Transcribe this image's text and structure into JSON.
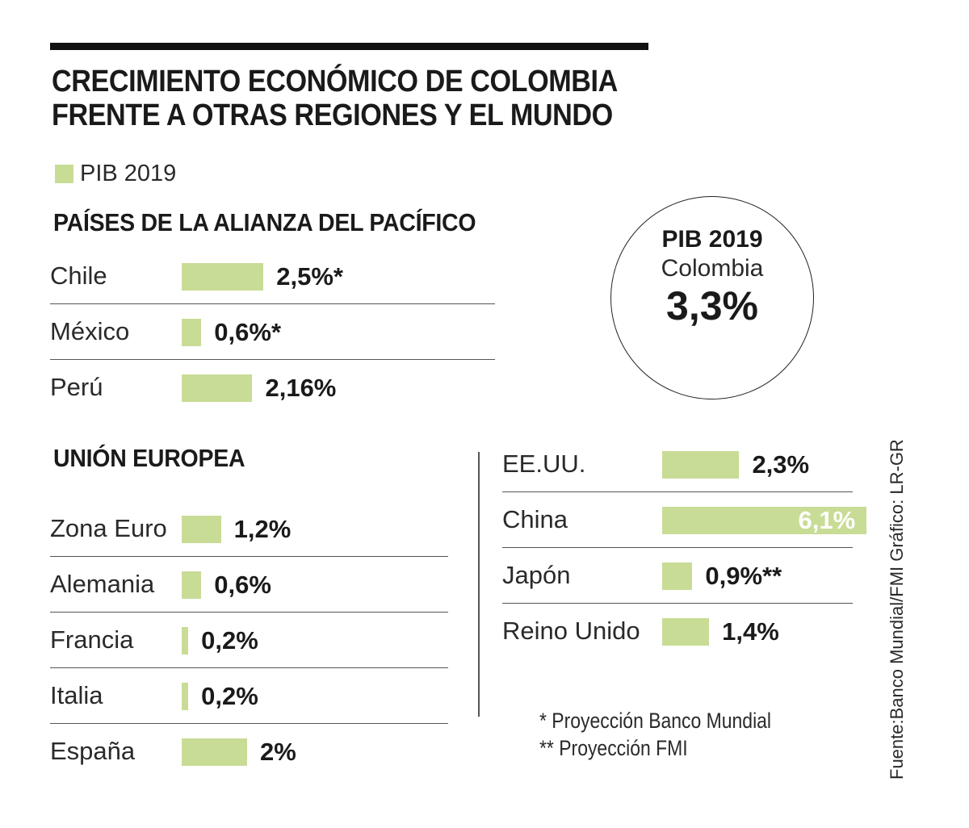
{
  "title_line1": "CRECIMIENTO ECONÓMICO DE COLOMBIA",
  "title_line2": "FRENTE A OTRAS REGIONES Y EL MUNDO",
  "legend_label": "PIB 2019",
  "colors": {
    "bar": "#c8dc96",
    "text": "#1a1a1a"
  },
  "circle": {
    "title": "PIB 2019",
    "country": "Colombia",
    "value_label": "3,3%",
    "value": 3.3
  },
  "footnotes": [
    "*   Proyección Banco Mundial",
    "** Proyección FMI"
  ],
  "side_text": "Fuente:Banco Mundial/FMI    Gráfico: LR-GR",
  "chart_data": {
    "type": "bar",
    "orientation": "horizontal",
    "title": "CRECIMIENTO ECONÓMICO DE COLOMBIA FRENTE A OTRAS REGIONES Y EL MUNDO",
    "series_name": "PIB 2019",
    "groups": [
      {
        "name": "PAÍSES DE LA ALIANZA DEL PACÍFICO",
        "items": [
          {
            "label": "Chile",
            "value": 2.5,
            "value_label": "2,5%*"
          },
          {
            "label": "México",
            "value": 0.6,
            "value_label": "0,6%*"
          },
          {
            "label": "Perú",
            "value": 2.16,
            "value_label": "2,16%"
          }
        ]
      },
      {
        "name": "UNIÓN EUROPEA",
        "items": [
          {
            "label": "Zona Euro",
            "value": 1.2,
            "value_label": "1,2%"
          },
          {
            "label": "Alemania",
            "value": 0.6,
            "value_label": "0,6%"
          },
          {
            "label": "Francia",
            "value": 0.2,
            "value_label": "0,2%"
          },
          {
            "label": "Italia",
            "value": 0.2,
            "value_label": "0,2%"
          },
          {
            "label": "España",
            "value": 2.0,
            "value_label": "2%"
          }
        ]
      },
      {
        "name": "",
        "items": [
          {
            "label": "EE.UU.",
            "value": 2.3,
            "value_label": "2,3%"
          },
          {
            "label": "China",
            "value": 6.1,
            "value_label": "6,1%"
          },
          {
            "label": "Japón",
            "value": 0.9,
            "value_label": "0,9%**"
          },
          {
            "label": "Reino Unido",
            "value": 1.4,
            "value_label": "1,4%"
          }
        ]
      }
    ]
  }
}
